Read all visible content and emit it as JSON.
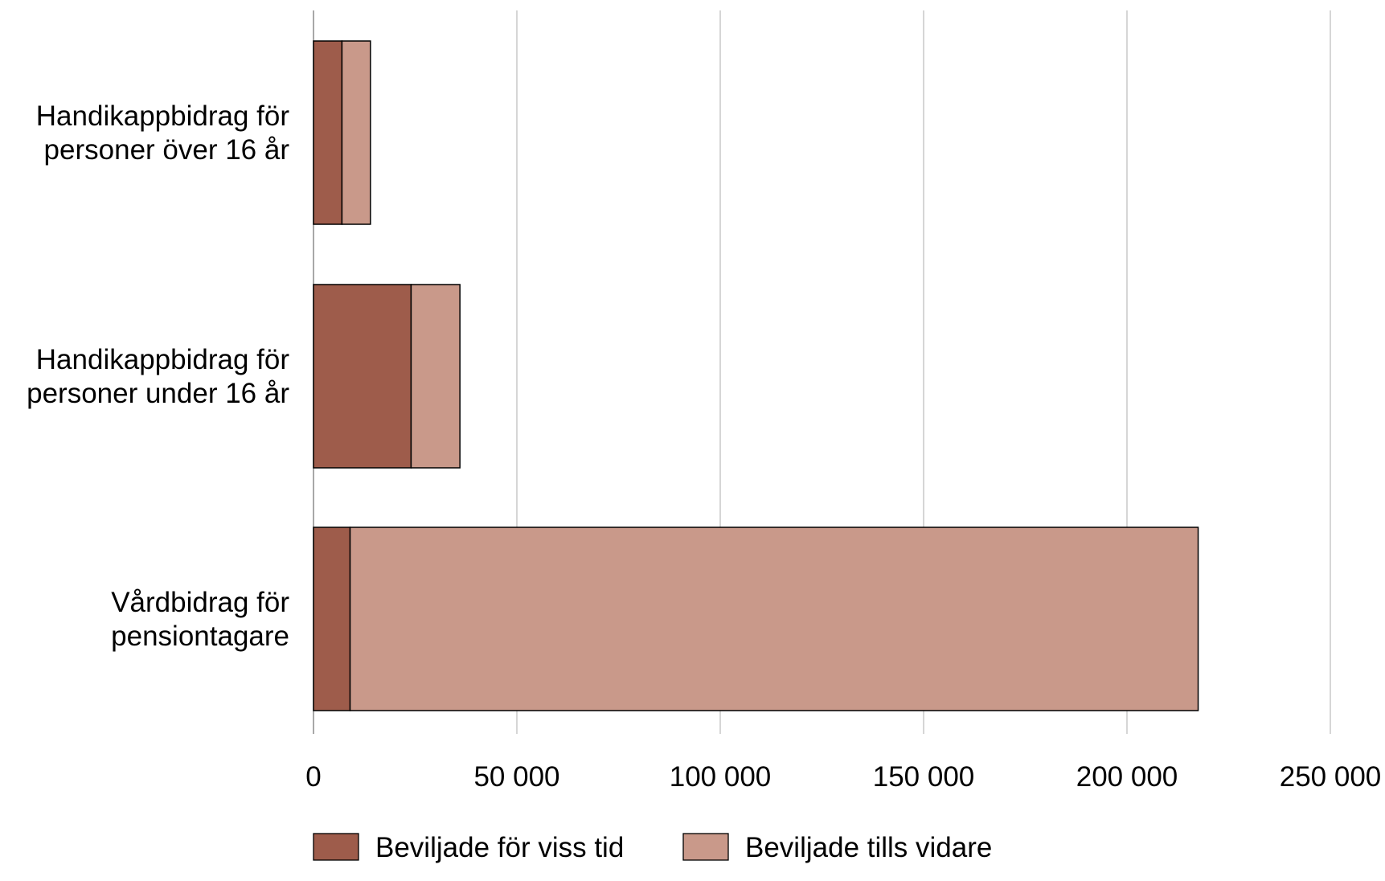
{
  "chart_data": {
    "type": "bar",
    "orientation": "horizontal",
    "stacked": true,
    "title": "",
    "xlabel": "",
    "ylabel": "",
    "categories": [
      [
        "Handikappbidrag för",
        "personer över 16 år"
      ],
      [
        "Handikappbidrag för",
        "personer under 16 år"
      ],
      [
        "Vårdbidrag för",
        "pensiontagare"
      ]
    ],
    "series": [
      {
        "name": "Beviljade för viss tid",
        "color": "#9e5c4b",
        "values": [
          7000,
          24000,
          9000
        ]
      },
      {
        "name": "Beviljade tills vidare",
        "color": "#c9998a",
        "values": [
          7000,
          12000,
          208500
        ]
      }
    ],
    "xlim": [
      0,
      250000
    ],
    "xticks": [
      0,
      50000,
      100000,
      150000,
      200000,
      250000
    ],
    "xtick_labels": [
      "0",
      "50 000",
      "100 000",
      "150 000",
      "200 000",
      "250 000"
    ],
    "grid": "vertical",
    "legend_position": "bottom"
  }
}
